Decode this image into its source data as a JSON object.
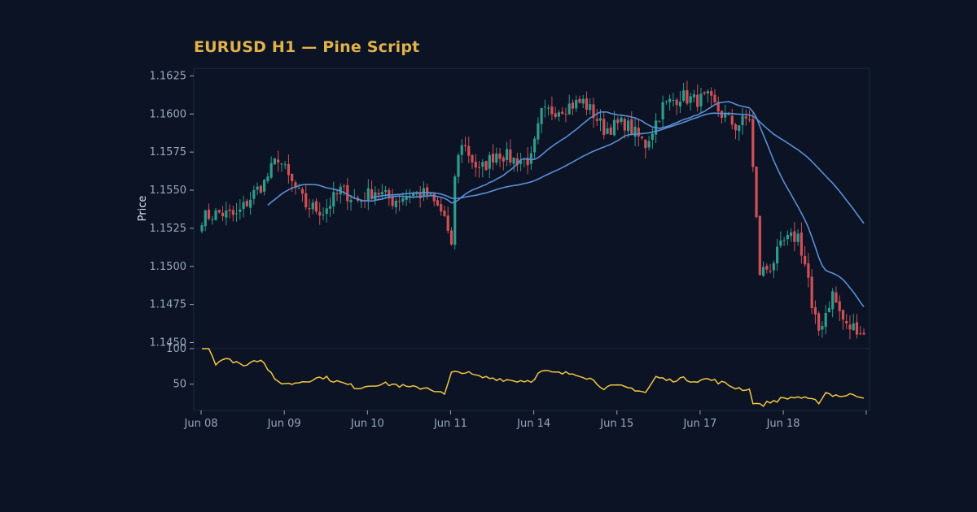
{
  "chart": {
    "title": "EURUSD H1 — Pine Script"
  },
  "colors": {
    "background": "#0b1324",
    "panel_border": "#1c2a40",
    "text": "#9aa7bb",
    "ylabel_text": "#d9dfe8",
    "title": "#e2b24a",
    "candle_up": "#2e9c8c",
    "candle_down": "#d05056",
    "ma": "#5b8fd6",
    "rsi": "#f3c642"
  },
  "chart_data": [
    {
      "type": "candlestick",
      "title": "EURUSD H1 — Pine Script",
      "xlabel": "",
      "ylabel": "Price",
      "ylim": [
        1.1446,
        1.163
      ],
      "yticks": [
        1.145,
        1.1475,
        1.15,
        1.1525,
        1.155,
        1.1575,
        1.16,
        1.1625
      ],
      "ytick_labels": [
        "1.1450",
        "1.1475",
        "1.1500",
        "1.1525",
        "1.1550",
        "1.1575",
        "1.1600",
        "1.1625"
      ],
      "x_categories": [
        "Jun 08",
        "Jun 09",
        "Jun 10",
        "Jun 11",
        "Jun 14",
        "Jun 15",
        "Jun 17",
        "Jun 18"
      ],
      "x_tick_index": [
        0,
        24,
        48,
        72,
        96,
        120,
        144,
        168
      ],
      "bars_count": 192,
      "close_anchors": [
        [
          0,
          1.1532
        ],
        [
          5,
          1.1535
        ],
        [
          10,
          1.1533
        ],
        [
          15,
          1.1548
        ],
        [
          18,
          1.1555
        ],
        [
          22,
          1.1572
        ],
        [
          25,
          1.1558
        ],
        [
          30,
          1.154
        ],
        [
          35,
          1.1536
        ],
        [
          40,
          1.155
        ],
        [
          45,
          1.1543
        ],
        [
          50,
          1.155
        ],
        [
          55,
          1.1543
        ],
        [
          60,
          1.1548
        ],
        [
          65,
          1.1547
        ],
        [
          70,
          1.1533
        ],
        [
          72,
          1.151
        ],
        [
          73,
          1.156
        ],
        [
          75,
          1.1582
        ],
        [
          80,
          1.1562
        ],
        [
          85,
          1.1575
        ],
        [
          90,
          1.157
        ],
        [
          95,
          1.157
        ],
        [
          98,
          1.16
        ],
        [
          105,
          1.1605
        ],
        [
          110,
          1.1608
        ],
        [
          113,
          1.16
        ],
        [
          116,
          1.159
        ],
        [
          122,
          1.1594
        ],
        [
          128,
          1.158
        ],
        [
          133,
          1.1605
        ],
        [
          138,
          1.1612
        ],
        [
          142,
          1.1609
        ],
        [
          146,
          1.161
        ],
        [
          150,
          1.16
        ],
        [
          154,
          1.1592
        ],
        [
          158,
          1.1598
        ],
        [
          160,
          1.153
        ],
        [
          161,
          1.1496
        ],
        [
          164,
          1.15
        ],
        [
          168,
          1.1516
        ],
        [
          172,
          1.152
        ],
        [
          175,
          1.1492
        ],
        [
          176,
          1.147
        ],
        [
          178,
          1.1458
        ],
        [
          180,
          1.147
        ],
        [
          182,
          1.1482
        ],
        [
          184,
          1.147
        ],
        [
          186,
          1.146
        ],
        [
          189,
          1.146
        ],
        [
          191,
          1.1455
        ]
      ],
      "series": [
        {
          "type": "candlestick"
        },
        {
          "type": "line",
          "role": "moving-average",
          "period": 20
        },
        {
          "type": "line",
          "role": "moving-average",
          "period": 50
        }
      ]
    },
    {
      "type": "line",
      "title": "",
      "ylabel": "",
      "ylim": [
        13,
        100
      ],
      "yticks": [
        50,
        100
      ],
      "ytick_labels": [
        "50",
        "100"
      ],
      "anchors": [
        [
          0,
          100
        ],
        [
          2,
          100
        ],
        [
          4,
          80
        ],
        [
          6,
          85
        ],
        [
          10,
          82
        ],
        [
          12,
          75
        ],
        [
          14,
          83
        ],
        [
          17,
          85
        ],
        [
          19,
          72
        ],
        [
          21,
          55
        ],
        [
          25,
          50
        ],
        [
          30,
          55
        ],
        [
          35,
          60
        ],
        [
          40,
          52
        ],
        [
          45,
          45
        ],
        [
          50,
          50
        ],
        [
          55,
          50
        ],
        [
          60,
          45
        ],
        [
          65,
          45
        ],
        [
          68,
          40
        ],
        [
          70,
          35
        ],
        [
          72,
          65
        ],
        [
          75,
          68
        ],
        [
          80,
          60
        ],
        [
          85,
          58
        ],
        [
          90,
          55
        ],
        [
          95,
          55
        ],
        [
          98,
          68
        ],
        [
          103,
          65
        ],
        [
          108,
          65
        ],
        [
          112,
          58
        ],
        [
          116,
          45
        ],
        [
          120,
          47
        ],
        [
          125,
          43
        ],
        [
          128,
          38
        ],
        [
          131,
          60
        ],
        [
          135,
          55
        ],
        [
          138,
          58
        ],
        [
          142,
          55
        ],
        [
          146,
          57
        ],
        [
          150,
          52
        ],
        [
          154,
          45
        ],
        [
          158,
          42
        ],
        [
          159,
          25
        ],
        [
          161,
          20
        ],
        [
          164,
          25
        ],
        [
          168,
          30
        ],
        [
          172,
          32
        ],
        [
          175,
          28
        ],
        [
          178,
          25
        ],
        [
          180,
          38
        ],
        [
          182,
          35
        ],
        [
          186,
          33
        ],
        [
          188,
          36
        ],
        [
          191,
          32
        ]
      ]
    }
  ]
}
